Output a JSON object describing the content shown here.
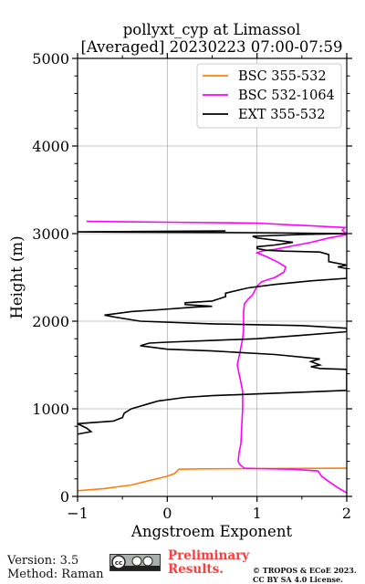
{
  "chart_data": {
    "type": "line",
    "title": "pollyxt_cyp at Limassol",
    "subtitle": "[Averaged] 20230223 07:00-07:59",
    "xlabel": "Angstroem Exponent",
    "ylabel": "Height (m)",
    "xlim": [
      -1,
      2
    ],
    "ylim": [
      0,
      5000
    ],
    "xticks": [
      "−1",
      "0",
      "1",
      "2"
    ],
    "yticks": [
      "0",
      "1000",
      "2000",
      "3000",
      "4000",
      "5000"
    ],
    "grid": true,
    "legend_position": "top-right",
    "series": [
      {
        "name": "BSC 355-532",
        "color": "#ff7f0e",
        "points": [
          [
            -1.05,
            60
          ],
          [
            -0.7,
            90
          ],
          [
            -0.4,
            130
          ],
          [
            -0.2,
            180
          ],
          [
            0.0,
            230
          ],
          [
            0.08,
            260
          ],
          [
            0.13,
            310
          ],
          [
            0.4,
            315
          ],
          [
            1.0,
            318
          ],
          [
            1.5,
            320
          ],
          [
            2.0,
            322
          ]
        ]
      },
      {
        "name": "BSC 532-1064",
        "color": "#ff00ff",
        "points": [
          [
            2.0,
            40
          ],
          [
            1.9,
            100
          ],
          [
            1.8,
            170
          ],
          [
            1.72,
            230
          ],
          [
            1.68,
            290
          ],
          [
            1.4,
            310
          ],
          [
            1.0,
            318
          ],
          [
            0.86,
            322
          ],
          [
            0.81,
            360
          ],
          [
            0.79,
            400
          ],
          [
            0.8,
            500
          ],
          [
            0.82,
            600
          ],
          [
            0.83,
            800
          ],
          [
            0.84,
            1000
          ],
          [
            0.84,
            1200
          ],
          [
            0.82,
            1300
          ],
          [
            0.8,
            1400
          ],
          [
            0.78,
            1500
          ],
          [
            0.8,
            1600
          ],
          [
            0.82,
            1700
          ],
          [
            0.84,
            1800
          ],
          [
            0.85,
            1900
          ],
          [
            0.85,
            2000
          ],
          [
            0.85,
            2100
          ],
          [
            0.86,
            2200
          ],
          [
            0.9,
            2250
          ],
          [
            0.95,
            2300
          ],
          [
            1.0,
            2400
          ],
          [
            1.05,
            2450
          ],
          [
            1.2,
            2500
          ],
          [
            1.3,
            2560
          ],
          [
            1.32,
            2620
          ],
          [
            1.22,
            2680
          ],
          [
            1.1,
            2740
          ],
          [
            1.0,
            2780
          ],
          [
            1.05,
            2800
          ],
          [
            1.2,
            2820
          ],
          [
            1.4,
            2860
          ],
          [
            1.6,
            2900
          ],
          [
            1.8,
            2950
          ],
          [
            2.0,
            2990
          ],
          [
            1.95,
            3040
          ],
          [
            1.98,
            3070
          ],
          [
            1.6,
            3090
          ],
          [
            1.38,
            3100
          ],
          [
            1.0,
            3120
          ],
          [
            0.0,
            3130
          ],
          [
            -0.9,
            3140
          ]
        ]
      },
      {
        "name": "EXT 355-532",
        "color": "#000000",
        "points": [
          [
            -1.05,
            700
          ],
          [
            -0.95,
            720
          ],
          [
            -0.85,
            740
          ],
          [
            -0.9,
            780
          ],
          [
            -1.0,
            830
          ],
          [
            -0.6,
            860
          ],
          [
            -0.5,
            900
          ],
          [
            -0.48,
            950
          ],
          [
            -0.4,
            1000
          ],
          [
            -0.3,
            1030
          ],
          [
            -0.2,
            1060
          ],
          [
            -0.1,
            1090
          ],
          [
            0.2,
            1130
          ],
          [
            0.5,
            1150
          ],
          [
            1.0,
            1170
          ],
          [
            1.5,
            1190
          ],
          [
            2.0,
            1210
          ],
          [
            2.0,
            1350
          ],
          [
            2.0,
            1450
          ],
          [
            1.7,
            1460
          ],
          [
            1.6,
            1480
          ],
          [
            1.7,
            1500
          ],
          [
            1.6,
            1540
          ],
          [
            1.7,
            1570
          ],
          [
            1.2,
            1620
          ],
          [
            0.5,
            1660
          ],
          [
            0.0,
            1680
          ],
          [
            -0.3,
            1720
          ],
          [
            -0.2,
            1750
          ],
          [
            0.0,
            1760
          ],
          [
            0.5,
            1780
          ],
          [
            1.0,
            1800
          ],
          [
            1.5,
            1840
          ],
          [
            2.0,
            1880
          ],
          [
            2.0,
            1920
          ],
          [
            1.5,
            1950
          ],
          [
            0.5,
            1970
          ],
          [
            -0.3,
            2000
          ],
          [
            -0.6,
            2050
          ],
          [
            -0.7,
            2070
          ],
          [
            -0.4,
            2110
          ],
          [
            -0.1,
            2130
          ],
          [
            0.3,
            2160
          ],
          [
            0.5,
            2170
          ],
          [
            0.2,
            2190
          ],
          [
            0.2,
            2210
          ],
          [
            0.5,
            2230
          ],
          [
            0.65,
            2280
          ],
          [
            0.65,
            2320
          ],
          [
            0.9,
            2380
          ],
          [
            1.2,
            2420
          ],
          [
            1.6,
            2460
          ],
          [
            2.0,
            2490
          ],
          [
            2.0,
            2600
          ],
          [
            1.9,
            2620
          ],
          [
            2.0,
            2640
          ],
          [
            1.8,
            2680
          ],
          [
            1.8,
            2760
          ],
          [
            1.7,
            2790
          ],
          [
            1.3,
            2800
          ],
          [
            1.1,
            2810
          ],
          [
            1.0,
            2830
          ],
          [
            1.0,
            2850
          ],
          [
            1.2,
            2870
          ],
          [
            1.4,
            2900
          ],
          [
            1.0,
            2950
          ],
          [
            0.95,
            2970
          ],
          [
            1.5,
            2990
          ],
          [
            2.0,
            3000
          ],
          [
            1.0,
            3010
          ],
          [
            -1.0,
            3020
          ],
          [
            0.65,
            3030
          ]
        ]
      }
    ]
  },
  "footer": {
    "version": "Version: 3.5",
    "method": "Method: Raman",
    "license_badge": "cc by sa",
    "preliminary_line1": "Preliminary",
    "preliminary_line2": "Results.",
    "copyright_line1": "© TROPOS & ECoE 2023.",
    "copyright_line2": "CC BY SA 4.0 License."
  }
}
